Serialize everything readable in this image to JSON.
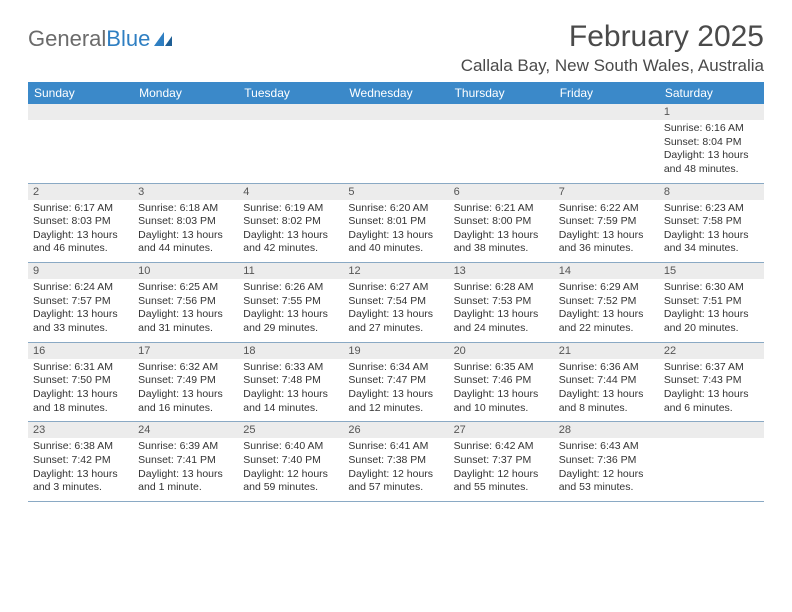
{
  "logo": {
    "text1": "General",
    "text2": "Blue"
  },
  "title": "February 2025",
  "location": "Callala Bay, New South Wales, Australia",
  "colors": {
    "header_bg": "#3b89c9",
    "header_text": "#ffffff",
    "num_bg": "#ececec",
    "rule": "#8aa9c4",
    "logo_gray": "#6b6b6b",
    "logo_blue": "#2f7fc2",
    "text": "#333333"
  },
  "dow": [
    "Sunday",
    "Monday",
    "Tuesday",
    "Wednesday",
    "Thursday",
    "Friday",
    "Saturday"
  ],
  "weeks": [
    [
      null,
      null,
      null,
      null,
      null,
      null,
      {
        "n": "1",
        "sr": "6:16 AM",
        "ss": "8:04 PM",
        "dl": "13 hours and 48 minutes."
      }
    ],
    [
      {
        "n": "2",
        "sr": "6:17 AM",
        "ss": "8:03 PM",
        "dl": "13 hours and 46 minutes."
      },
      {
        "n": "3",
        "sr": "6:18 AM",
        "ss": "8:03 PM",
        "dl": "13 hours and 44 minutes."
      },
      {
        "n": "4",
        "sr": "6:19 AM",
        "ss": "8:02 PM",
        "dl": "13 hours and 42 minutes."
      },
      {
        "n": "5",
        "sr": "6:20 AM",
        "ss": "8:01 PM",
        "dl": "13 hours and 40 minutes."
      },
      {
        "n": "6",
        "sr": "6:21 AM",
        "ss": "8:00 PM",
        "dl": "13 hours and 38 minutes."
      },
      {
        "n": "7",
        "sr": "6:22 AM",
        "ss": "7:59 PM",
        "dl": "13 hours and 36 minutes."
      },
      {
        "n": "8",
        "sr": "6:23 AM",
        "ss": "7:58 PM",
        "dl": "13 hours and 34 minutes."
      }
    ],
    [
      {
        "n": "9",
        "sr": "6:24 AM",
        "ss": "7:57 PM",
        "dl": "13 hours and 33 minutes."
      },
      {
        "n": "10",
        "sr": "6:25 AM",
        "ss": "7:56 PM",
        "dl": "13 hours and 31 minutes."
      },
      {
        "n": "11",
        "sr": "6:26 AM",
        "ss": "7:55 PM",
        "dl": "13 hours and 29 minutes."
      },
      {
        "n": "12",
        "sr": "6:27 AM",
        "ss": "7:54 PM",
        "dl": "13 hours and 27 minutes."
      },
      {
        "n": "13",
        "sr": "6:28 AM",
        "ss": "7:53 PM",
        "dl": "13 hours and 24 minutes."
      },
      {
        "n": "14",
        "sr": "6:29 AM",
        "ss": "7:52 PM",
        "dl": "13 hours and 22 minutes."
      },
      {
        "n": "15",
        "sr": "6:30 AM",
        "ss": "7:51 PM",
        "dl": "13 hours and 20 minutes."
      }
    ],
    [
      {
        "n": "16",
        "sr": "6:31 AM",
        "ss": "7:50 PM",
        "dl": "13 hours and 18 minutes."
      },
      {
        "n": "17",
        "sr": "6:32 AM",
        "ss": "7:49 PM",
        "dl": "13 hours and 16 minutes."
      },
      {
        "n": "18",
        "sr": "6:33 AM",
        "ss": "7:48 PM",
        "dl": "13 hours and 14 minutes."
      },
      {
        "n": "19",
        "sr": "6:34 AM",
        "ss": "7:47 PM",
        "dl": "13 hours and 12 minutes."
      },
      {
        "n": "20",
        "sr": "6:35 AM",
        "ss": "7:46 PM",
        "dl": "13 hours and 10 minutes."
      },
      {
        "n": "21",
        "sr": "6:36 AM",
        "ss": "7:44 PM",
        "dl": "13 hours and 8 minutes."
      },
      {
        "n": "22",
        "sr": "6:37 AM",
        "ss": "7:43 PM",
        "dl": "13 hours and 6 minutes."
      }
    ],
    [
      {
        "n": "23",
        "sr": "6:38 AM",
        "ss": "7:42 PM",
        "dl": "13 hours and 3 minutes."
      },
      {
        "n": "24",
        "sr": "6:39 AM",
        "ss": "7:41 PM",
        "dl": "13 hours and 1 minute."
      },
      {
        "n": "25",
        "sr": "6:40 AM",
        "ss": "7:40 PM",
        "dl": "12 hours and 59 minutes."
      },
      {
        "n": "26",
        "sr": "6:41 AM",
        "ss": "7:38 PM",
        "dl": "12 hours and 57 minutes."
      },
      {
        "n": "27",
        "sr": "6:42 AM",
        "ss": "7:37 PM",
        "dl": "12 hours and 55 minutes."
      },
      {
        "n": "28",
        "sr": "6:43 AM",
        "ss": "7:36 PM",
        "dl": "12 hours and 53 minutes."
      },
      null
    ]
  ],
  "labels": {
    "sunrise": "Sunrise:",
    "sunset": "Sunset:",
    "daylight": "Daylight:"
  }
}
